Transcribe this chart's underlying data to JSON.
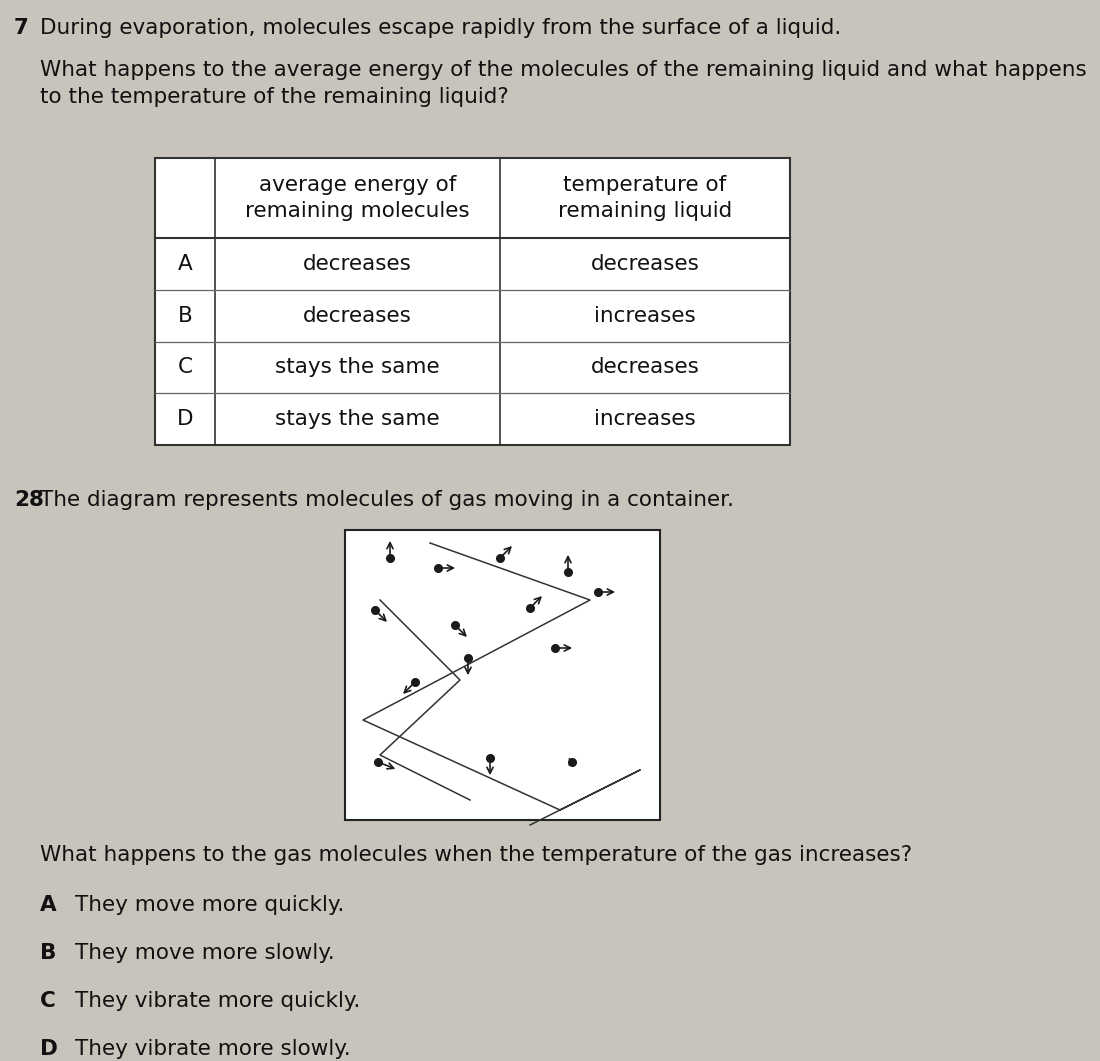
{
  "bg_color": "#c8c4bc",
  "text_color": "#111111",
  "q7_num": "7",
  "q7_title": "During evaporation, molecules escape rapidly from the surface of a liquid.",
  "q7_sub": "What happens to the average energy of the molecules of the remaining liquid and what happens\nto the temperature of the remaining liquid?",
  "table_col1_header": "average energy of\nremaining molecules",
  "table_col2_header": "temperature of\nremaining liquid",
  "table_rows": [
    [
      "A",
      "decreases",
      "decreases"
    ],
    [
      "B",
      "decreases",
      "increases"
    ],
    [
      "C",
      "stays the same",
      "decreases"
    ],
    [
      "D",
      "stays the same",
      "increases"
    ]
  ],
  "q28_num": "28",
  "q28_title": "The diagram represents molecules of gas moving in a container.",
  "q28_sub": "What happens to the gas molecules when the temperature of the gas increases?",
  "q28_options": [
    [
      "A",
      "They move more quickly."
    ],
    [
      "B",
      "They move more slowly."
    ],
    [
      "C",
      "They vibrate more quickly."
    ],
    [
      "D",
      "They vibrate more slowly."
    ]
  ]
}
